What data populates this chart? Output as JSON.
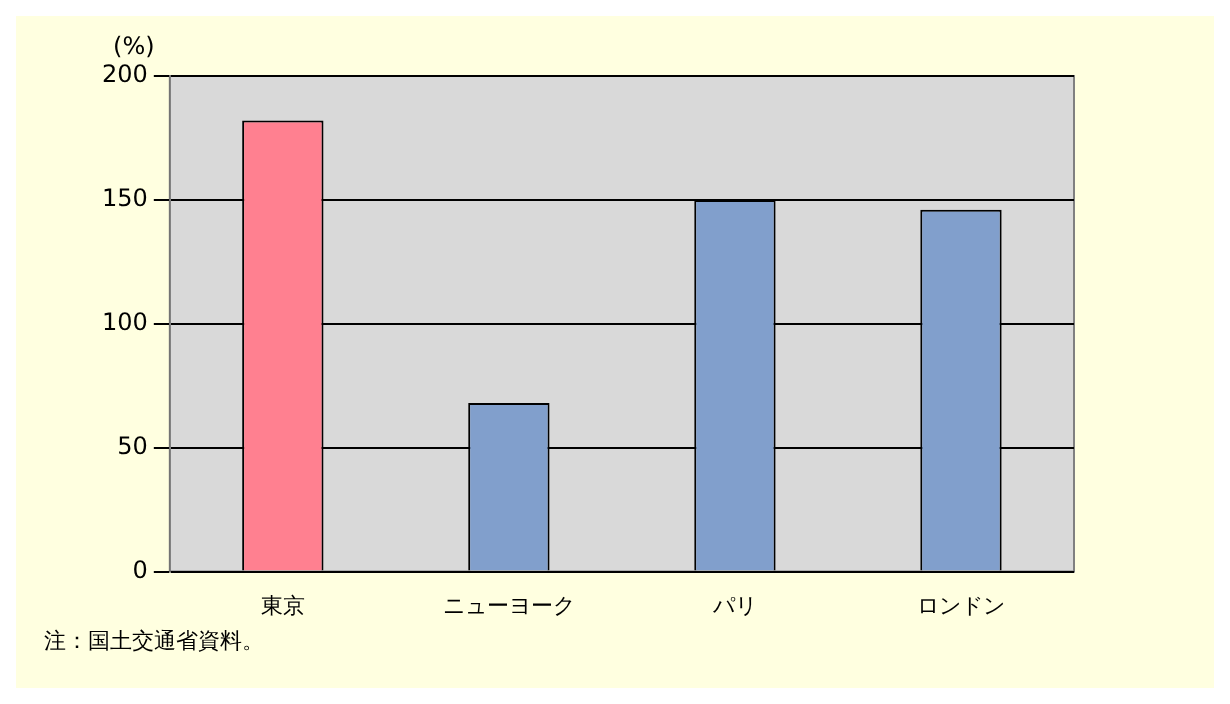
{
  "chart_data": {
    "type": "bar",
    "ylabel": "(%)",
    "categories": [
      "東京",
      "ニューヨーク",
      "パリ",
      "ロンドン"
    ],
    "values": [
      182,
      68,
      150,
      146
    ],
    "colors": [
      "#ff8090",
      "#819fcc",
      "#819fcc",
      "#819fcc"
    ],
    "ylim": [
      0,
      200
    ],
    "yticks": [
      0,
      50,
      100,
      150,
      200
    ],
    "grid": "y",
    "legend": false,
    "annotations": [
      "注：国土交通省資料。"
    ]
  }
}
